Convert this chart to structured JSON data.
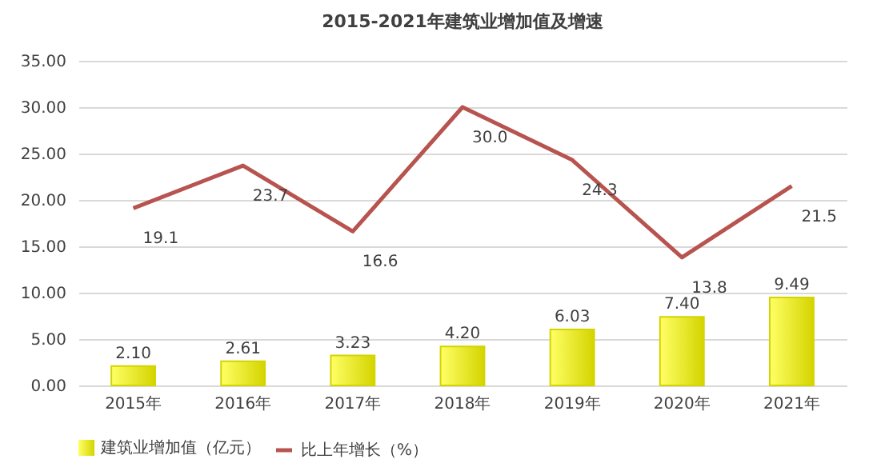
{
  "chart_data": {
    "type": "bar",
    "title": "2015-2021年建筑业增加值及增速",
    "categories": [
      "2015年",
      "2016年",
      "2017年",
      "2018年",
      "2019年",
      "2020年",
      "2021年"
    ],
    "series": [
      {
        "name": "建筑业增加值（亿元）",
        "color": "#d4d400",
        "values": [
          2.1,
          2.61,
          3.23,
          4.2,
          6.03,
          7.4,
          9.49
        ],
        "value_labels": [
          "2.10",
          "2.61",
          "3.23",
          "4.20",
          "6.03",
          "7.40",
          "9.49"
        ]
      },
      {
        "name": "比上年增长（%）",
        "type": "line",
        "color": "#b85450",
        "values": [
          19.1,
          23.7,
          16.6,
          30.0,
          24.3,
          13.8,
          21.5
        ],
        "value_labels": [
          "19.1",
          "23.7",
          "16.6",
          "30.0",
          "24.3",
          "13.8",
          "21.5"
        ]
      }
    ],
    "ylim": [
      0,
      35
    ],
    "yticks": [
      {
        "value": 0,
        "label": "0.00"
      },
      {
        "value": 5,
        "label": "5.00"
      },
      {
        "value": 10,
        "label": "10.00"
      },
      {
        "value": 15,
        "label": "15.00"
      },
      {
        "value": 20,
        "label": "20.00"
      },
      {
        "value": 25,
        "label": "25.00"
      },
      {
        "value": 30,
        "label": "30.00"
      },
      {
        "value": 35,
        "label": "35.00"
      }
    ],
    "grid": "y",
    "legend": "bottom",
    "marker": "none",
    "line_style": "solid"
  }
}
